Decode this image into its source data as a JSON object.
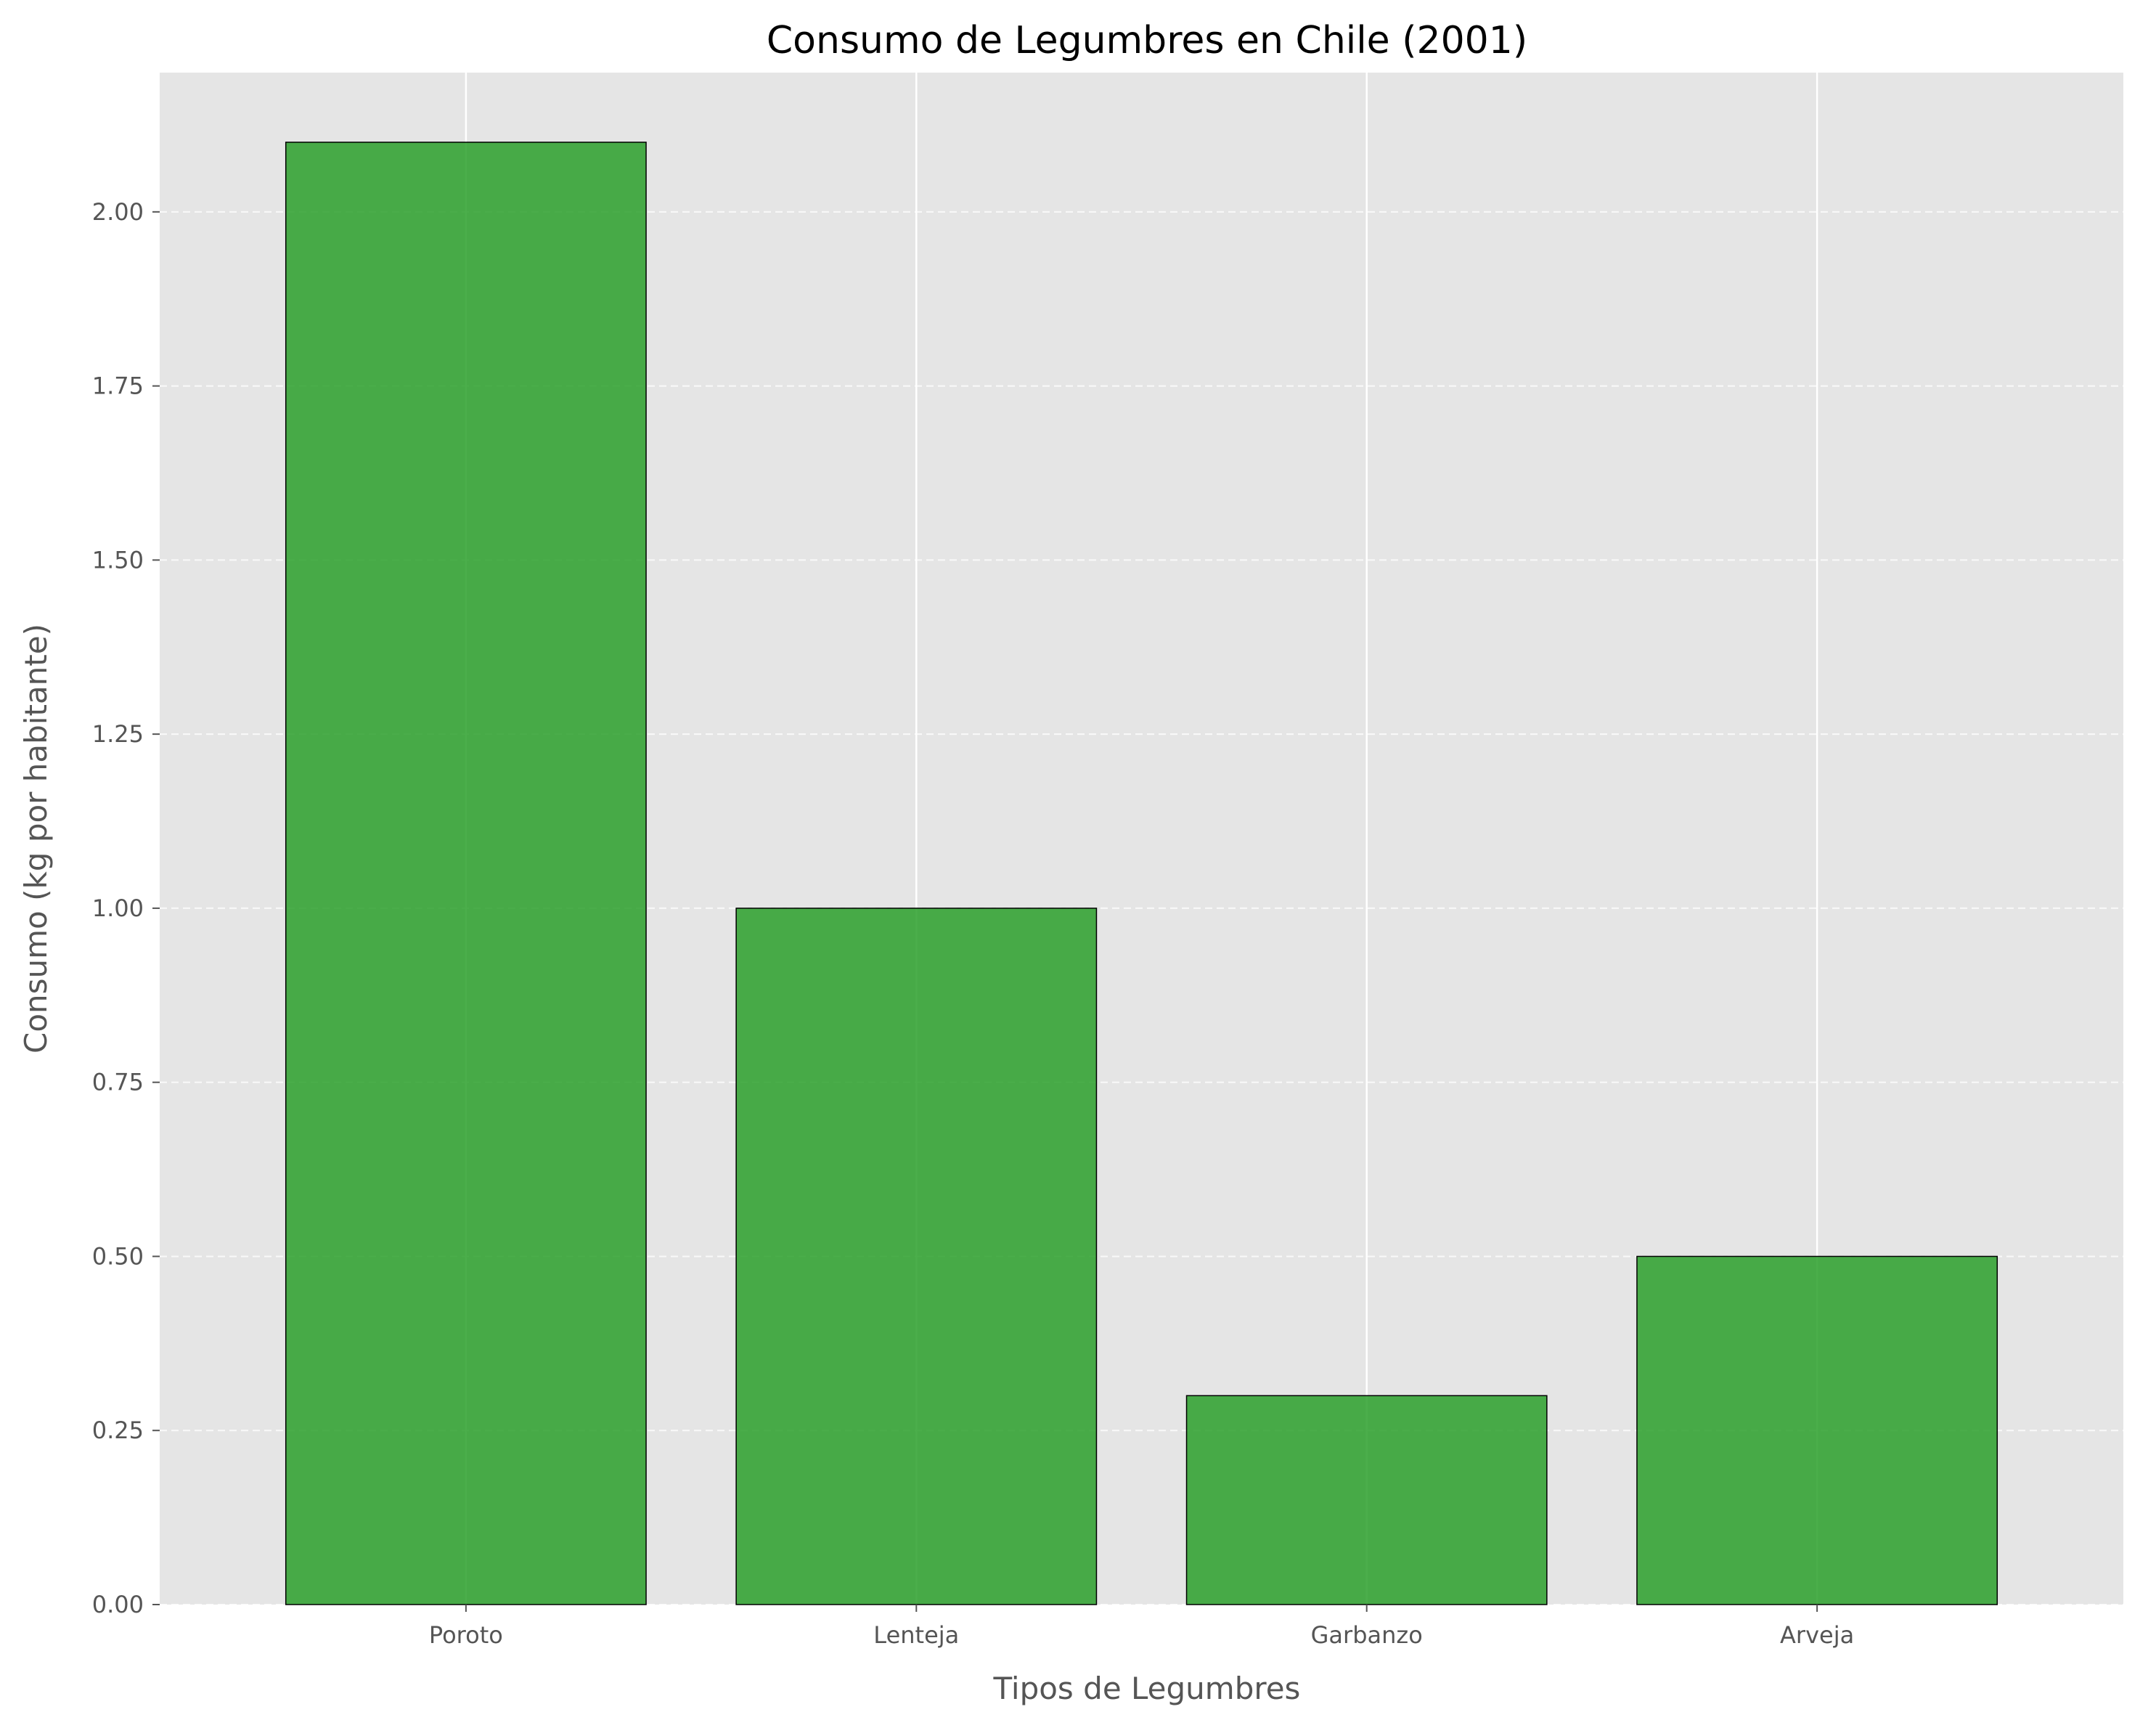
{
  "chart_data": {
    "type": "bar",
    "title": "Consumo de Legumbres en Chile (2001)",
    "xlabel": "Tipos de Legumbres",
    "ylabel": "Consumo (kg por habitante)",
    "categories": [
      "Poroto",
      "Lenteja",
      "Garbanzo",
      "Arveja"
    ],
    "values": [
      2.1,
      1.0,
      0.3,
      0.5
    ],
    "ylim": [
      0,
      2.2
    ],
    "yticks": [
      0,
      0.25,
      0.5,
      0.75,
      1.0,
      1.25,
      1.5,
      1.75,
      2.0
    ],
    "ytick_labels": [
      "0.00",
      "0.25",
      "0.50",
      "0.75",
      "1.00",
      "1.25",
      "1.50",
      "1.75",
      "2.00"
    ],
    "grid": true,
    "colors": {
      "bar": "#2ca02c",
      "bar_edge": "#000000",
      "plot_background": "#e5e5e5",
      "grid": "#ffffff"
    }
  }
}
